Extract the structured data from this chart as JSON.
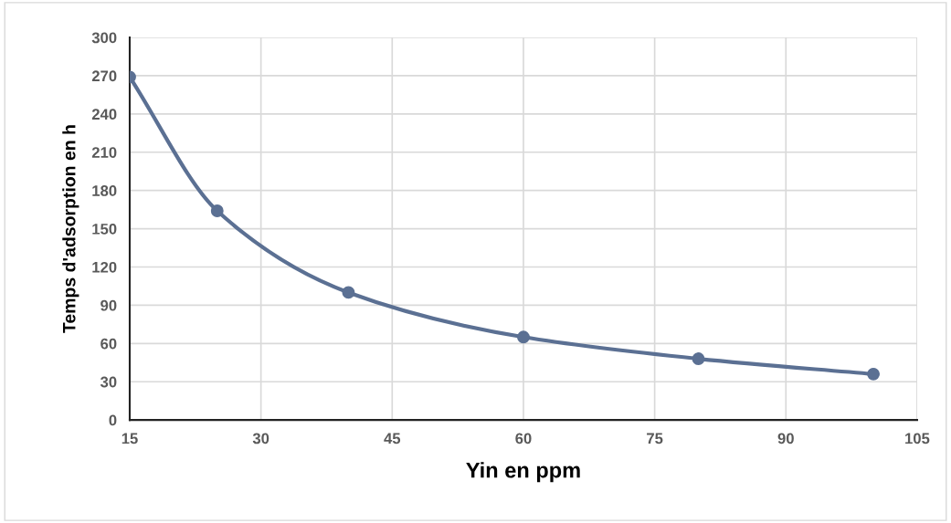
{
  "chart_data": {
    "type": "line",
    "xlabel": "Yin en ppm",
    "ylabel": "Temps d'adsorption en h",
    "x": [
      15,
      25,
      40,
      60,
      80,
      100
    ],
    "series": [
      {
        "color": "#5b7093",
        "values": [
          269,
          164,
          100,
          65,
          48,
          36
        ]
      }
    ],
    "xlim": [
      15,
      105
    ],
    "xticks": [
      15,
      30,
      45,
      60,
      75,
      90,
      105
    ],
    "ylim": [
      0,
      300
    ],
    "yticks": [
      0,
      30,
      60,
      90,
      120,
      150,
      180,
      210,
      240,
      270,
      300
    ],
    "grid": true,
    "marker": "circle",
    "line_style": "solid",
    "legend": false
  }
}
